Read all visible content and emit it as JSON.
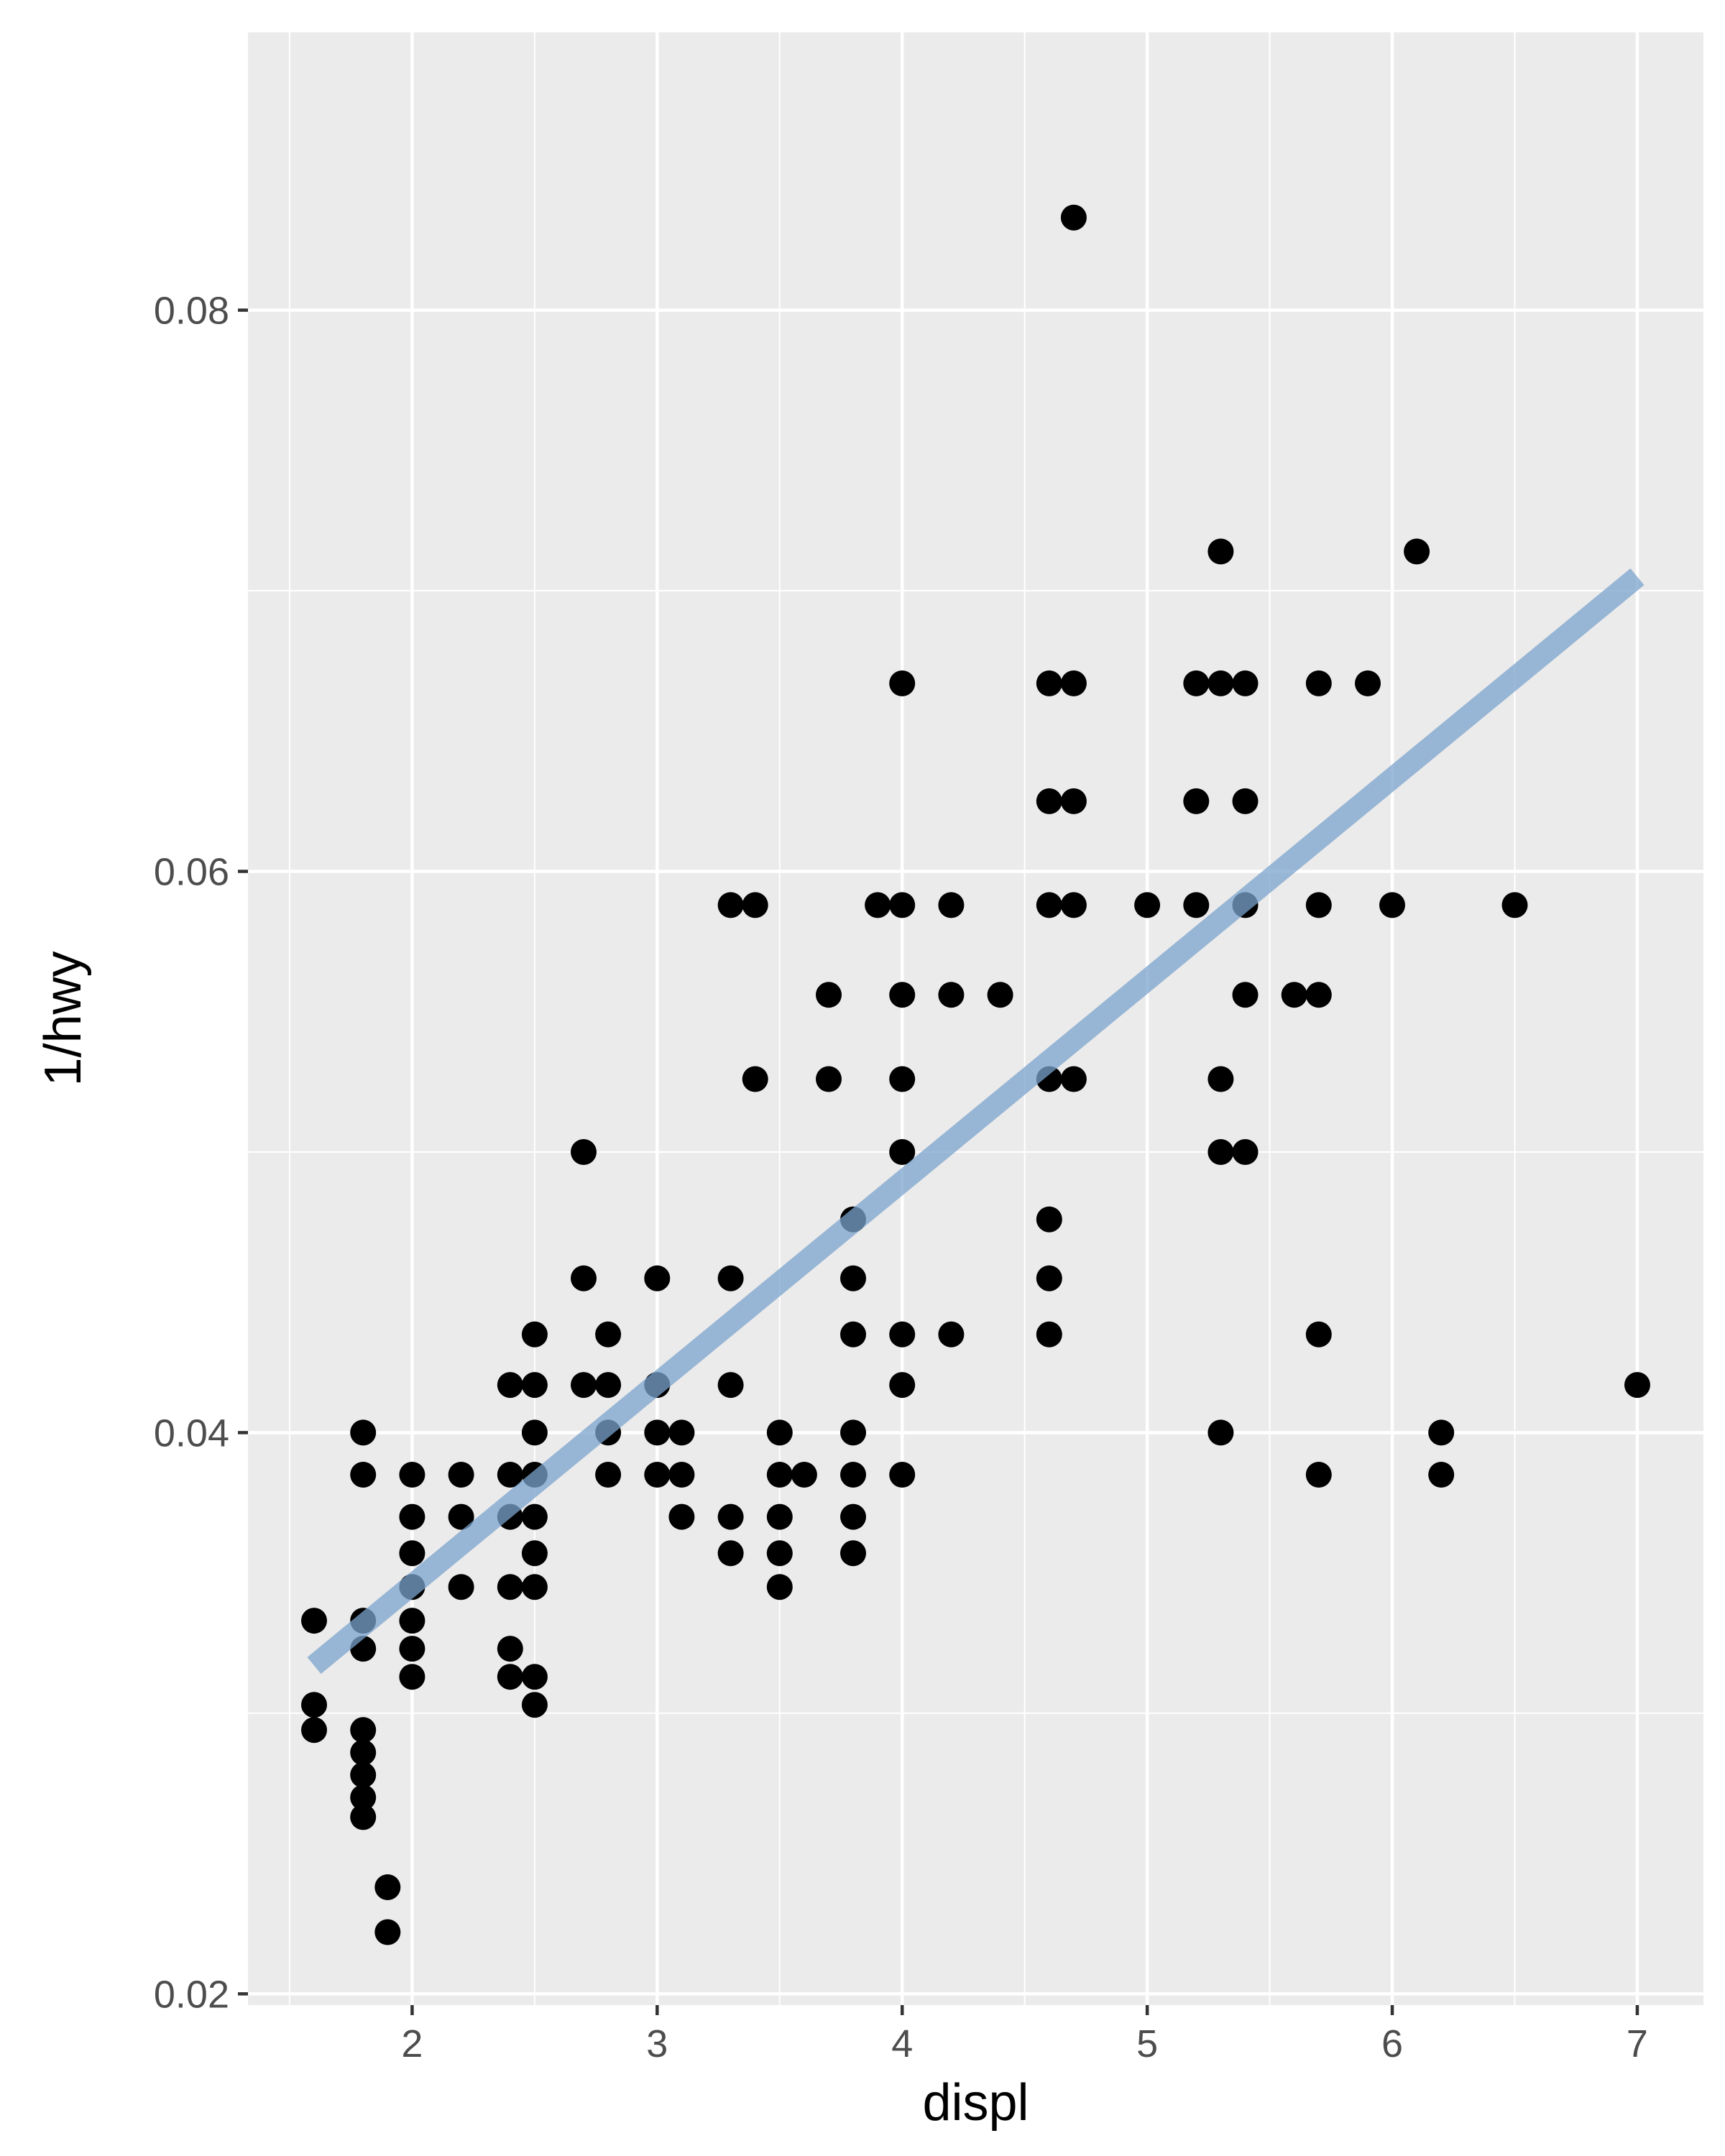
{
  "chart_data": {
    "type": "scatter",
    "title": "",
    "xlabel": "displ",
    "ylabel": "1/hwy",
    "xlim": [
      1.33,
      7.27
    ],
    "ylim": [
      0.0196,
      0.0899
    ],
    "x_ticks": [
      2,
      3,
      4,
      5,
      6,
      7
    ],
    "x_tick_labels": [
      "2",
      "3",
      "4",
      "5",
      "6",
      "7"
    ],
    "y_ticks": [
      0.02,
      0.04,
      0.06,
      0.08
    ],
    "y_tick_labels": [
      "0.02",
      "0.04",
      "0.06",
      "0.08"
    ],
    "grid": true,
    "legend": "none",
    "colors": {
      "panel": "#ebebeb",
      "grid": "#ffffff",
      "point": "#000000",
      "fit_line": "#7ba3cc",
      "tick_text": "#4d4d4d"
    },
    "series": [
      {
        "kind": "points",
        "points": [
          [
            1.6,
            0.0333
          ],
          [
            1.6,
            0.0303
          ],
          [
            1.6,
            0.0294
          ],
          [
            1.8,
            0.04
          ],
          [
            1.8,
            0.0385
          ],
          [
            1.8,
            0.0333
          ],
          [
            1.8,
            0.0323
          ],
          [
            1.8,
            0.0294
          ],
          [
            1.8,
            0.0286
          ],
          [
            1.8,
            0.0278
          ],
          [
            1.8,
            0.027
          ],
          [
            1.8,
            0.0263
          ],
          [
            1.9,
            0.0238
          ],
          [
            1.9,
            0.0222
          ],
          [
            2.0,
            0.0385
          ],
          [
            2.0,
            0.037
          ],
          [
            2.0,
            0.0357
          ],
          [
            2.0,
            0.0345
          ],
          [
            2.0,
            0.0333
          ],
          [
            2.0,
            0.0323
          ],
          [
            2.0,
            0.0313
          ],
          [
            2.2,
            0.0385
          ],
          [
            2.2,
            0.037
          ],
          [
            2.2,
            0.0345
          ],
          [
            2.4,
            0.0417
          ],
          [
            2.4,
            0.0385
          ],
          [
            2.4,
            0.037
          ],
          [
            2.4,
            0.0345
          ],
          [
            2.4,
            0.0323
          ],
          [
            2.4,
            0.0313
          ],
          [
            2.5,
            0.0435
          ],
          [
            2.5,
            0.0417
          ],
          [
            2.5,
            0.04
          ],
          [
            2.5,
            0.0385
          ],
          [
            2.5,
            0.037
          ],
          [
            2.5,
            0.0357
          ],
          [
            2.5,
            0.0345
          ],
          [
            2.5,
            0.0313
          ],
          [
            2.5,
            0.0303
          ],
          [
            2.7,
            0.05
          ],
          [
            2.7,
            0.0455
          ],
          [
            2.7,
            0.0417
          ],
          [
            2.8,
            0.0435
          ],
          [
            2.8,
            0.0417
          ],
          [
            2.8,
            0.04
          ],
          [
            2.8,
            0.0385
          ],
          [
            3.0,
            0.0455
          ],
          [
            3.0,
            0.0417
          ],
          [
            3.0,
            0.04
          ],
          [
            3.0,
            0.0385
          ],
          [
            3.1,
            0.04
          ],
          [
            3.1,
            0.0385
          ],
          [
            3.1,
            0.037
          ],
          [
            3.3,
            0.0588
          ],
          [
            3.3,
            0.0455
          ],
          [
            3.3,
            0.0417
          ],
          [
            3.3,
            0.037
          ],
          [
            3.3,
            0.0357
          ],
          [
            3.4,
            0.0588
          ],
          [
            3.4,
            0.0526
          ],
          [
            3.5,
            0.04
          ],
          [
            3.5,
            0.0385
          ],
          [
            3.5,
            0.037
          ],
          [
            3.5,
            0.0357
          ],
          [
            3.5,
            0.0345
          ],
          [
            3.6,
            0.0385
          ],
          [
            3.7,
            0.0556
          ],
          [
            3.7,
            0.0526
          ],
          [
            3.8,
            0.0476
          ],
          [
            3.8,
            0.0455
          ],
          [
            3.8,
            0.0435
          ],
          [
            3.8,
            0.04
          ],
          [
            3.8,
            0.0385
          ],
          [
            3.8,
            0.037
          ],
          [
            3.8,
            0.0357
          ],
          [
            3.9,
            0.0588
          ],
          [
            4.0,
            0.0667
          ],
          [
            4.0,
            0.0588
          ],
          [
            4.0,
            0.0556
          ],
          [
            4.0,
            0.0526
          ],
          [
            4.0,
            0.05
          ],
          [
            4.0,
            0.0435
          ],
          [
            4.0,
            0.0417
          ],
          [
            4.0,
            0.0385
          ],
          [
            4.2,
            0.0588
          ],
          [
            4.2,
            0.0556
          ],
          [
            4.2,
            0.0435
          ],
          [
            4.4,
            0.0556
          ],
          [
            4.6,
            0.0667
          ],
          [
            4.6,
            0.0625
          ],
          [
            4.6,
            0.0588
          ],
          [
            4.6,
            0.0526
          ],
          [
            4.6,
            0.0476
          ],
          [
            4.6,
            0.0455
          ],
          [
            4.6,
            0.0435
          ],
          [
            4.7,
            0.0833
          ],
          [
            4.7,
            0.0667
          ],
          [
            4.7,
            0.0625
          ],
          [
            4.7,
            0.0588
          ],
          [
            4.7,
            0.0526
          ],
          [
            5.0,
            0.0588
          ],
          [
            5.2,
            0.0667
          ],
          [
            5.2,
            0.0625
          ],
          [
            5.2,
            0.0588
          ],
          [
            5.3,
            0.0714
          ],
          [
            5.3,
            0.0667
          ],
          [
            5.3,
            0.0526
          ],
          [
            5.3,
            0.05
          ],
          [
            5.3,
            0.04
          ],
          [
            5.4,
            0.0667
          ],
          [
            5.4,
            0.0625
          ],
          [
            5.4,
            0.0588
          ],
          [
            5.4,
            0.0556
          ],
          [
            5.4,
            0.05
          ],
          [
            5.6,
            0.0556
          ],
          [
            5.7,
            0.0667
          ],
          [
            5.7,
            0.0588
          ],
          [
            5.7,
            0.0556
          ],
          [
            5.7,
            0.0435
          ],
          [
            5.7,
            0.0385
          ],
          [
            5.9,
            0.0667
          ],
          [
            6.0,
            0.0588
          ],
          [
            6.1,
            0.0714
          ],
          [
            6.2,
            0.04
          ],
          [
            6.2,
            0.0385
          ],
          [
            6.5,
            0.0588
          ],
          [
            7.0,
            0.0417
          ]
        ]
      },
      {
        "kind": "fit-line",
        "points": [
          [
            1.6,
            0.0317
          ],
          [
            7.0,
            0.0705
          ]
        ]
      }
    ]
  }
}
